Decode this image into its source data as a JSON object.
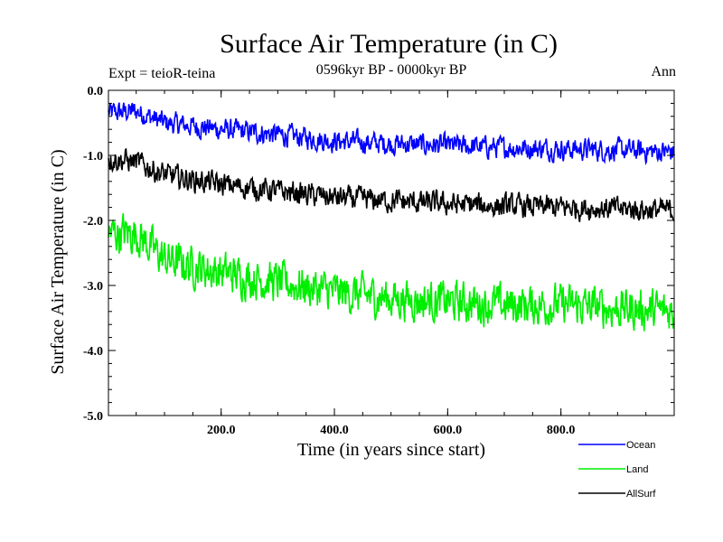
{
  "chart_data": {
    "type": "line",
    "title": "Surface Air Temperature (in C)",
    "subtitle": "0596kyr BP - 0000kyr BP",
    "left_label": "Expt = teioR-teina",
    "right_label": "Ann",
    "xlabel": "Time (in years since start)",
    "ylabel": "Surface Air Temperature (in C)",
    "xlim": [
      1,
      1000
    ],
    "ylim": [
      -5.0,
      0.0
    ],
    "x_ticks": [
      200,
      400,
      600,
      800
    ],
    "x_tick_labels": [
      "200.0",
      "400.0",
      "600.0",
      "800.0"
    ],
    "y_ticks": [
      0.0,
      -1.0,
      -2.0,
      -3.0,
      -4.0,
      -5.0
    ],
    "y_tick_labels": [
      "0.0",
      "-1.0",
      "-2.0",
      "-3.0",
      "-4.0",
      "-5.0"
    ],
    "grid": false,
    "legend_position": "bottom-right",
    "series": [
      {
        "name": "Ocean",
        "color": "#0000ff",
        "anchors_x": [
          1,
          50,
          100,
          200,
          300,
          400,
          500,
          600,
          700,
          800,
          900,
          1000
        ],
        "anchors_y": [
          -0.35,
          -0.32,
          -0.5,
          -0.6,
          -0.68,
          -0.78,
          -0.82,
          -0.85,
          -0.88,
          -0.9,
          -0.92,
          -0.95
        ],
        "noise": 0.14
      },
      {
        "name": "Land",
        "color": "#00ee00",
        "anchors_x": [
          1,
          50,
          100,
          200,
          300,
          400,
          500,
          600,
          700,
          800,
          900,
          1000
        ],
        "anchors_y": [
          -2.2,
          -2.2,
          -2.6,
          -2.8,
          -2.95,
          -3.1,
          -3.2,
          -3.25,
          -3.3,
          -3.3,
          -3.35,
          -3.4
        ],
        "noise": 0.26
      },
      {
        "name": "AllSurf",
        "color": "#000000",
        "anchors_x": [
          1,
          50,
          100,
          200,
          300,
          400,
          500,
          600,
          700,
          800,
          900,
          1000
        ],
        "anchors_y": [
          -1.05,
          -1.1,
          -1.3,
          -1.45,
          -1.55,
          -1.65,
          -1.7,
          -1.75,
          -1.78,
          -1.8,
          -1.82,
          -1.85
        ],
        "noise": 0.15
      }
    ]
  }
}
